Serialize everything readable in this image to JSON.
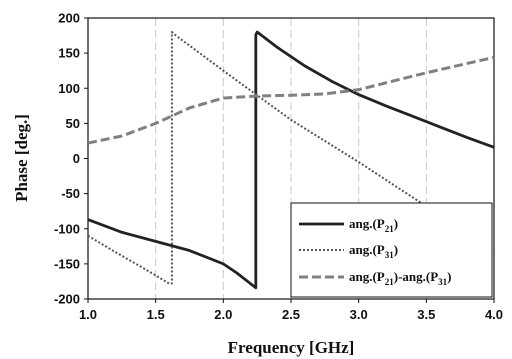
{
  "chart_data": {
    "type": "line",
    "xlabel": "Frequency [GHz]",
    "ylabel": "Phase [deg.]",
    "xlim": [
      1.0,
      4.0
    ],
    "ylim": [
      -200,
      200
    ],
    "xticks": [
      "1.0",
      "1.5",
      "2.0",
      "2.5",
      "3.0",
      "3.5",
      "4.0"
    ],
    "yticks": [
      "200",
      "150",
      "100",
      "50",
      "0",
      "-50",
      "-100",
      "-150",
      "-200"
    ],
    "grid": "vertical dashed",
    "legend_position": "bottom-right",
    "legend": [
      {
        "main": "ang.(P",
        "sub": "21",
        "tail": ")"
      },
      {
        "main": "ang.(P",
        "sub": "31",
        "tail": ")"
      },
      {
        "main": "ang.(P",
        "sub": "21",
        "mid": ")-ang.(P",
        "sub2": "31",
        "tail": ")"
      }
    ],
    "series": [
      {
        "style": "solid",
        "color": "#222222",
        "x": [
          1.0,
          1.25,
          1.5,
          1.75,
          2.0,
          2.1,
          2.2,
          2.24,
          2.24,
          2.25,
          2.4,
          2.6,
          2.8,
          3.0,
          3.2,
          3.4,
          3.6,
          3.8,
          4.0
        ],
        "y": [
          -87,
          -105,
          -118,
          -131,
          -150,
          -163,
          -178,
          -184,
          176,
          180,
          158,
          132,
          110,
          91,
          75,
          60,
          45,
          30,
          16
        ]
      },
      {
        "style": "dotted",
        "color": "#555555",
        "x": [
          1.0,
          1.2,
          1.4,
          1.6,
          1.62,
          1.62,
          1.65,
          2.0,
          2.5,
          3.0,
          3.5,
          4.0
        ],
        "y": [
          -110,
          -133,
          -155,
          -178,
          -178,
          180,
          175,
          125,
          55,
          -5,
          -68,
          -128
        ]
      },
      {
        "style": "dashed",
        "color": "#808080",
        "x": [
          1.0,
          1.25,
          1.5,
          1.75,
          2.0,
          2.25,
          2.5,
          2.75,
          3.0,
          3.25,
          3.5,
          3.75,
          4.0
        ],
        "y": [
          22,
          32,
          50,
          72,
          86,
          89,
          90,
          92,
          98,
          110,
          122,
          133,
          144
        ]
      }
    ]
  }
}
